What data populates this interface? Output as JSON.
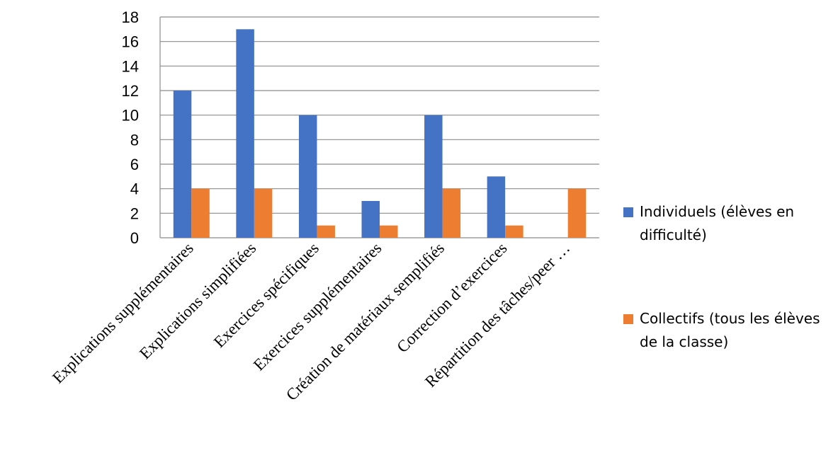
{
  "chart_data": {
    "type": "bar",
    "title": "",
    "xlabel": "",
    "ylabel": "",
    "categories": [
      "Explications supplémentaires",
      "Explications simplifiées",
      "Exercices spécifiques",
      "Exercices supplémentaires",
      "Création de matériaux semplifiés",
      "Correction d’exercices",
      "Répartition des tâches/peer …"
    ],
    "series": [
      {
        "name": "Individuels (élèves en difficulté)",
        "color": "#4472C4",
        "values": [
          12,
          17,
          10,
          3,
          10,
          5,
          0
        ]
      },
      {
        "name": "Collectifs (tous les élèves de la classe)",
        "color": "#ED7D31",
        "values": [
          4,
          4,
          1,
          1,
          4,
          1,
          4
        ]
      }
    ],
    "ylim": [
      0,
      18
    ],
    "yticks": [
      0,
      2,
      4,
      6,
      8,
      10,
      12,
      14,
      16,
      18
    ],
    "grid": true,
    "legend_position": "right"
  },
  "legend": {
    "items": [
      {
        "label": "Individuels (élèves en difficulté)",
        "color": "#4472C4"
      },
      {
        "label": "Collectifs (tous les élèves de la classe)",
        "color": "#ED7D31"
      }
    ]
  }
}
